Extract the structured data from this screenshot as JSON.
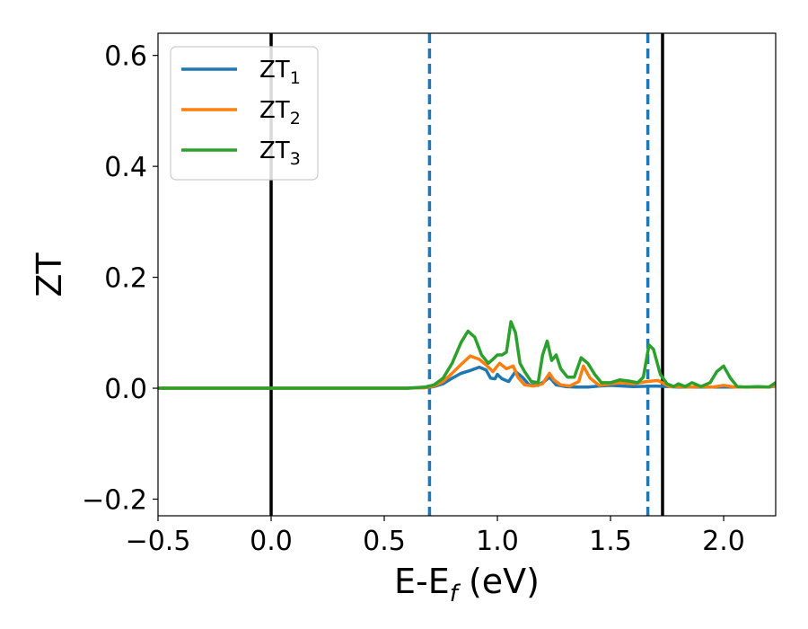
{
  "chart_data": {
    "type": "line",
    "xlabel": {
      "main": "E-E",
      "sub": "f",
      "unit": " (eV)"
    },
    "ylabel": "ZT",
    "xlim": [
      -0.5,
      2.23
    ],
    "ylim": [
      -0.23,
      0.64
    ],
    "x_ticks": [
      -0.5,
      0.0,
      0.5,
      1.0,
      1.5,
      2.0
    ],
    "x_tick_labels": [
      "−0.5",
      "0.0",
      "0.5",
      "1.0",
      "1.5",
      "2.0"
    ],
    "y_ticks": [
      -0.2,
      0.0,
      0.2,
      0.4,
      0.6
    ],
    "y_tick_labels": [
      "−0.2",
      "0.0",
      "0.2",
      "0.4",
      "0.6"
    ],
    "grid": false,
    "legend_position": "top-left",
    "vertical_lines": [
      {
        "x": 0.0,
        "style": "solid",
        "color": "#000000"
      },
      {
        "x": 1.73,
        "style": "solid",
        "color": "#000000"
      },
      {
        "x": 0.7,
        "style": "dashed",
        "color": "#1f77b4"
      },
      {
        "x": 1.665,
        "style": "dashed",
        "color": "#1f77b4"
      }
    ],
    "series": [
      {
        "name": "ZT",
        "sub": "1",
        "color": "#1f77b4",
        "points": [
          [
            -0.5,
            0
          ],
          [
            0.6,
            0
          ],
          [
            0.68,
            0.001
          ],
          [
            0.72,
            0.003
          ],
          [
            0.76,
            0.008
          ],
          [
            0.8,
            0.018
          ],
          [
            0.84,
            0.027
          ],
          [
            0.88,
            0.032
          ],
          [
            0.92,
            0.038
          ],
          [
            0.95,
            0.033
          ],
          [
            0.97,
            0.018
          ],
          [
            0.99,
            0.017
          ],
          [
            1.0,
            0.025
          ],
          [
            1.02,
            0.017
          ],
          [
            1.05,
            0.012
          ],
          [
            1.08,
            0.03
          ],
          [
            1.11,
            0.02
          ],
          [
            1.14,
            0.006
          ],
          [
            1.18,
            0.005
          ],
          [
            1.21,
            0.013
          ],
          [
            1.23,
            0.02
          ],
          [
            1.26,
            0.006
          ],
          [
            1.3,
            0.003
          ],
          [
            1.35,
            0.002
          ],
          [
            1.4,
            0.002
          ],
          [
            1.45,
            0.004
          ],
          [
            1.5,
            0.005
          ],
          [
            1.6,
            0.003
          ],
          [
            1.7,
            0.004
          ],
          [
            1.8,
            0.002
          ],
          [
            1.9,
            0.002
          ],
          [
            2.0,
            0.002
          ],
          [
            2.1,
            0.002
          ],
          [
            2.2,
            0.002
          ],
          [
            2.23,
            0.004
          ]
        ]
      },
      {
        "name": "ZT",
        "sub": "2",
        "color": "#ff7f0e",
        "points": [
          [
            -0.5,
            0
          ],
          [
            0.6,
            0
          ],
          [
            0.68,
            0.001
          ],
          [
            0.72,
            0.004
          ],
          [
            0.76,
            0.012
          ],
          [
            0.8,
            0.027
          ],
          [
            0.84,
            0.043
          ],
          [
            0.88,
            0.058
          ],
          [
            0.92,
            0.052
          ],
          [
            0.95,
            0.042
          ],
          [
            0.98,
            0.03
          ],
          [
            1.01,
            0.045
          ],
          [
            1.04,
            0.035
          ],
          [
            1.07,
            0.04
          ],
          [
            1.09,
            0.02
          ],
          [
            1.12,
            0.006
          ],
          [
            1.16,
            0.004
          ],
          [
            1.2,
            0.008
          ],
          [
            1.23,
            0.027
          ],
          [
            1.25,
            0.015
          ],
          [
            1.28,
            0.006
          ],
          [
            1.32,
            0.004
          ],
          [
            1.36,
            0.012
          ],
          [
            1.38,
            0.04
          ],
          [
            1.41,
            0.018
          ],
          [
            1.45,
            0.005
          ],
          [
            1.5,
            0.008
          ],
          [
            1.55,
            0.01
          ],
          [
            1.6,
            0.008
          ],
          [
            1.66,
            0.012
          ],
          [
            1.71,
            0.014
          ],
          [
            1.76,
            0.003
          ],
          [
            1.8,
            0.003
          ],
          [
            1.85,
            0.002
          ],
          [
            1.9,
            0.003
          ],
          [
            1.95,
            0.002
          ],
          [
            2.0,
            0.005
          ],
          [
            2.05,
            0.002
          ],
          [
            2.1,
            0.002
          ],
          [
            2.2,
            0.002
          ],
          [
            2.23,
            0.005
          ]
        ]
      },
      {
        "name": "ZT",
        "sub": "3",
        "color": "#2ca02c",
        "points": [
          [
            -0.5,
            0
          ],
          [
            0.6,
            0
          ],
          [
            0.68,
            0.002
          ],
          [
            0.72,
            0.006
          ],
          [
            0.76,
            0.018
          ],
          [
            0.8,
            0.045
          ],
          [
            0.84,
            0.083
          ],
          [
            0.87,
            0.103
          ],
          [
            0.9,
            0.092
          ],
          [
            0.93,
            0.06
          ],
          [
            0.96,
            0.045
          ],
          [
            0.98,
            0.052
          ],
          [
            1.0,
            0.06
          ],
          [
            1.02,
            0.06
          ],
          [
            1.04,
            0.065
          ],
          [
            1.06,
            0.12
          ],
          [
            1.08,
            0.1
          ],
          [
            1.1,
            0.045
          ],
          [
            1.12,
            0.03
          ],
          [
            1.15,
            0.012
          ],
          [
            1.18,
            0.01
          ],
          [
            1.2,
            0.06
          ],
          [
            1.22,
            0.085
          ],
          [
            1.24,
            0.05
          ],
          [
            1.26,
            0.06
          ],
          [
            1.28,
            0.035
          ],
          [
            1.31,
            0.02
          ],
          [
            1.34,
            0.02
          ],
          [
            1.37,
            0.055
          ],
          [
            1.4,
            0.045
          ],
          [
            1.43,
            0.025
          ],
          [
            1.46,
            0.01
          ],
          [
            1.5,
            0.01
          ],
          [
            1.54,
            0.015
          ],
          [
            1.58,
            0.013
          ],
          [
            1.62,
            0.01
          ],
          [
            1.645,
            0.02
          ],
          [
            1.67,
            0.078
          ],
          [
            1.69,
            0.07
          ],
          [
            1.72,
            0.025
          ],
          [
            1.75,
            0.008
          ],
          [
            1.78,
            0.003
          ],
          [
            1.8,
            0.008
          ],
          [
            1.83,
            0.003
          ],
          [
            1.86,
            0.01
          ],
          [
            1.9,
            0.003
          ],
          [
            1.94,
            0.01
          ],
          [
            1.97,
            0.03
          ],
          [
            2.0,
            0.04
          ],
          [
            2.03,
            0.018
          ],
          [
            2.06,
            0.003
          ],
          [
            2.1,
            0.002
          ],
          [
            2.15,
            0.003
          ],
          [
            2.2,
            0.002
          ],
          [
            2.23,
            0.01
          ]
        ]
      }
    ]
  }
}
